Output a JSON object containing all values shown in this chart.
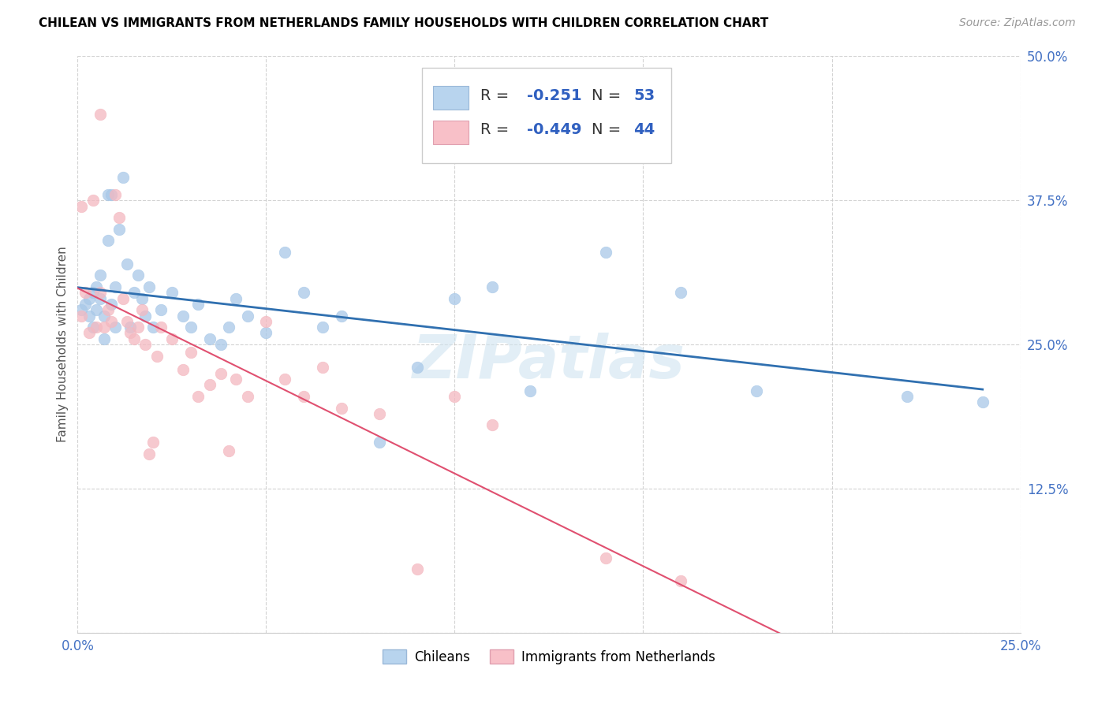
{
  "title": "CHILEAN VS IMMIGRANTS FROM NETHERLANDS FAMILY HOUSEHOLDS WITH CHILDREN CORRELATION CHART",
  "source": "Source: ZipAtlas.com",
  "ylabel": "Family Households with Children",
  "xlim": [
    0.0,
    0.25
  ],
  "ylim": [
    0.0,
    0.5
  ],
  "xticks": [
    0.0,
    0.05,
    0.1,
    0.15,
    0.2,
    0.25
  ],
  "yticks": [
    0.0,
    0.125,
    0.25,
    0.375,
    0.5
  ],
  "blue_R": "-0.251",
  "blue_N": "53",
  "pink_R": "-0.449",
  "pink_N": "44",
  "legend_label_blue": "Chileans",
  "legend_label_pink": "Immigrants from Netherlands",
  "watermark": "ZIPatlas",
  "blue_scatter_color": "#a8c8e8",
  "pink_scatter_color": "#f4b8c0",
  "blue_line_color": "#3070b0",
  "pink_line_color": "#e05070",
  "tick_color": "#4472c4",
  "blue_points_x": [
    0.001,
    0.002,
    0.003,
    0.003,
    0.004,
    0.004,
    0.005,
    0.005,
    0.006,
    0.006,
    0.007,
    0.007,
    0.008,
    0.008,
    0.009,
    0.009,
    0.01,
    0.01,
    0.011,
    0.012,
    0.013,
    0.014,
    0.015,
    0.016,
    0.017,
    0.018,
    0.019,
    0.02,
    0.022,
    0.025,
    0.028,
    0.03,
    0.032,
    0.035,
    0.038,
    0.04,
    0.042,
    0.045,
    0.05,
    0.055,
    0.06,
    0.065,
    0.07,
    0.08,
    0.09,
    0.1,
    0.11,
    0.12,
    0.14,
    0.16,
    0.18,
    0.22,
    0.24
  ],
  "blue_points_y": [
    0.28,
    0.285,
    0.29,
    0.275,
    0.265,
    0.295,
    0.28,
    0.3,
    0.29,
    0.31,
    0.275,
    0.255,
    0.34,
    0.38,
    0.285,
    0.38,
    0.265,
    0.3,
    0.35,
    0.395,
    0.32,
    0.265,
    0.295,
    0.31,
    0.29,
    0.275,
    0.3,
    0.265,
    0.28,
    0.295,
    0.275,
    0.265,
    0.285,
    0.255,
    0.25,
    0.265,
    0.29,
    0.275,
    0.26,
    0.33,
    0.295,
    0.265,
    0.275,
    0.165,
    0.23,
    0.29,
    0.3,
    0.21,
    0.33,
    0.295,
    0.21,
    0.205,
    0.2
  ],
  "pink_points_x": [
    0.001,
    0.001,
    0.002,
    0.003,
    0.004,
    0.005,
    0.006,
    0.006,
    0.007,
    0.008,
    0.009,
    0.01,
    0.011,
    0.012,
    0.013,
    0.014,
    0.015,
    0.016,
    0.017,
    0.018,
    0.019,
    0.02,
    0.021,
    0.022,
    0.025,
    0.028,
    0.03,
    0.032,
    0.035,
    0.038,
    0.04,
    0.042,
    0.045,
    0.05,
    0.055,
    0.06,
    0.065,
    0.07,
    0.08,
    0.09,
    0.1,
    0.11,
    0.14,
    0.16
  ],
  "pink_points_y": [
    0.275,
    0.37,
    0.295,
    0.26,
    0.375,
    0.265,
    0.295,
    0.45,
    0.265,
    0.28,
    0.27,
    0.38,
    0.36,
    0.29,
    0.27,
    0.26,
    0.255,
    0.265,
    0.28,
    0.25,
    0.155,
    0.165,
    0.24,
    0.265,
    0.255,
    0.228,
    0.243,
    0.205,
    0.215,
    0.225,
    0.158,
    0.22,
    0.205,
    0.27,
    0.22,
    0.205,
    0.23,
    0.195,
    0.19,
    0.055,
    0.205,
    0.18,
    0.065,
    0.045
  ]
}
